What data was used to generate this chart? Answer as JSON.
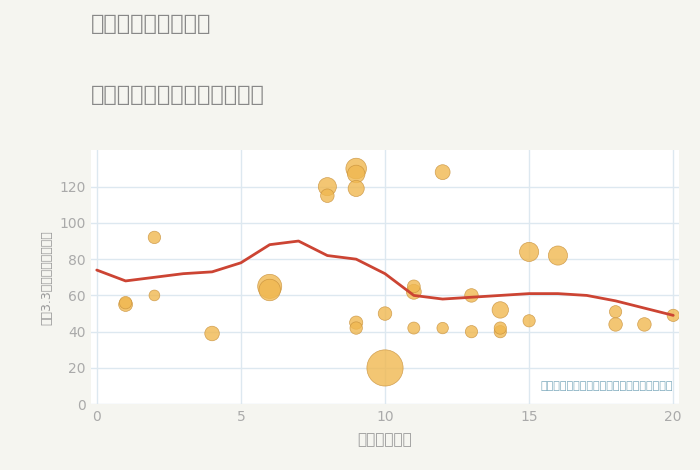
{
  "title_line1": "愛知県稲沢市緑町の",
  "title_line2": "駅距離別中古マンション価格",
  "xlabel": "駅距離（分）",
  "ylabel": "坪（3.3㎡）単価（万円）",
  "fig_background_color": "#f5f5f0",
  "plot_background_color": "#ffffff",
  "line_color": "#cc4433",
  "scatter_color": "#f0b850",
  "scatter_edge_color": "#c8903a",
  "annotation": "円の大きさは、取引のあった物件面積を示す",
  "annotation_color": "#7aa8bb",
  "title_color": "#888888",
  "label_color": "#999999",
  "tick_color": "#aaaaaa",
  "grid_color": "#dde8f0",
  "xlim": [
    -0.2,
    20.2
  ],
  "ylim": [
    0,
    140
  ],
  "xticks": [
    0,
    5,
    10,
    15,
    20
  ],
  "yticks": [
    0,
    20,
    40,
    60,
    80,
    100,
    120
  ],
  "line_x": [
    0,
    1,
    2,
    3,
    4,
    5,
    6,
    7,
    8,
    9,
    10,
    11,
    12,
    13,
    14,
    15,
    16,
    17,
    18,
    19,
    20
  ],
  "line_y": [
    74,
    68,
    70,
    72,
    73,
    78,
    88,
    90,
    82,
    80,
    72,
    60,
    58,
    59,
    60,
    61,
    61,
    60,
    57,
    53,
    49
  ],
  "scatter_x": [
    1,
    1,
    2,
    2,
    4,
    6,
    6,
    8,
    8,
    9,
    9,
    9,
    9,
    9,
    10,
    10,
    11,
    11,
    11,
    12,
    12,
    13,
    13,
    14,
    14,
    14,
    15,
    15,
    16,
    18,
    18,
    19,
    20
  ],
  "scatter_y": [
    55,
    56,
    92,
    60,
    39,
    65,
    63,
    120,
    115,
    130,
    127,
    119,
    45,
    42,
    20,
    50,
    62,
    65,
    42,
    42,
    128,
    40,
    60,
    40,
    52,
    42,
    84,
    46,
    82,
    44,
    51,
    44,
    49
  ],
  "scatter_size": [
    100,
    80,
    80,
    60,
    110,
    300,
    240,
    170,
    95,
    220,
    160,
    135,
    90,
    80,
    680,
    95,
    115,
    85,
    75,
    68,
    115,
    78,
    95,
    78,
    140,
    78,
    190,
    78,
    190,
    95,
    78,
    95,
    78
  ]
}
